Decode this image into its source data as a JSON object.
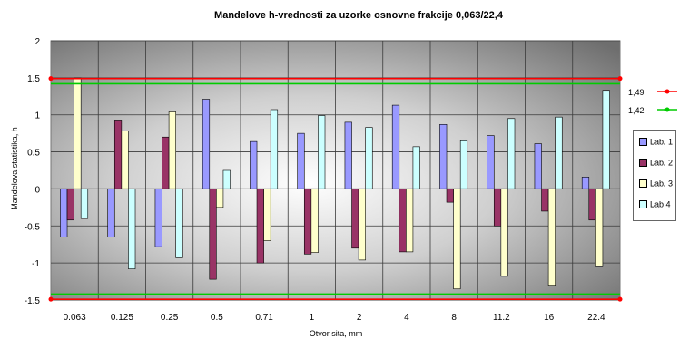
{
  "chart_data": {
    "type": "bar",
    "title": "Mandelove h-vrednosti za uzorke osnovne frakcije 0,063/22,4",
    "xlabel": "Otvor sita, mm",
    "ylabel": "Mandelova statistika, h",
    "ylim": [
      -1.5,
      2
    ],
    "yticks": [
      "-1.5",
      "-1",
      "-0.5",
      "0",
      "0.5",
      "1",
      "1.5",
      "2"
    ],
    "categories": [
      "0.063",
      "0.125",
      "0.25",
      "0.5",
      "0.71",
      "1",
      "2",
      "4",
      "8",
      "11.2",
      "16",
      "22.4"
    ],
    "series": [
      {
        "name": "Lab. 1",
        "color": "#9999ff",
        "values": [
          -0.65,
          -0.65,
          -0.78,
          1.21,
          0.64,
          0.75,
          0.9,
          1.13,
          0.87,
          0.72,
          0.61,
          0.16
        ]
      },
      {
        "name": "Lab. 2",
        "color": "#993366",
        "values": [
          -0.42,
          0.93,
          0.7,
          -1.22,
          -1.0,
          -0.88,
          -0.8,
          -0.85,
          -0.18,
          -0.5,
          -0.3,
          -0.42
        ]
      },
      {
        "name": "Lab. 3",
        "color": "#ffffcc",
        "values": [
          1.5,
          0.78,
          1.04,
          -0.25,
          -0.7,
          -0.86,
          -0.96,
          -0.85,
          -1.35,
          -1.18,
          -1.3,
          -1.05
        ]
      },
      {
        "name": "Lab 4",
        "color": "#ccffff",
        "values": [
          -0.4,
          -1.08,
          -0.93,
          0.25,
          1.07,
          0.99,
          0.83,
          0.57,
          0.65,
          0.95,
          0.97,
          1.33
        ]
      }
    ],
    "reference_lines": [
      {
        "label": "1,49",
        "value": 1.49,
        "color": "#ff0000"
      },
      {
        "label": "1,42",
        "value": 1.42,
        "color": "#00cc00"
      }
    ],
    "lower_reference_lines": [
      -1.49,
      -1.42
    ],
    "grid": true,
    "legend_position": "right"
  }
}
